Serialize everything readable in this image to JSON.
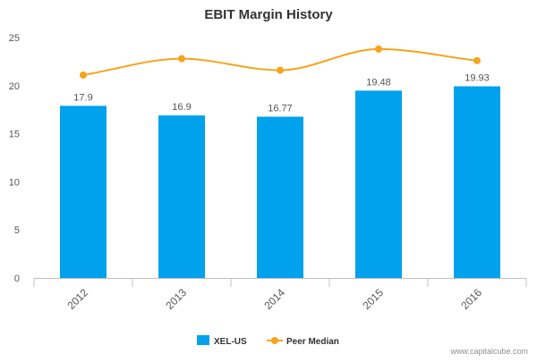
{
  "chart_data": {
    "type": "bar",
    "title": "EBIT Margin History",
    "xlabel": "",
    "ylabel": "",
    "categories": [
      "2012",
      "2013",
      "2014",
      "2015",
      "2016"
    ],
    "ylim": [
      0,
      25
    ],
    "yticks": [
      0,
      5,
      10,
      15,
      20,
      25
    ],
    "grid": false,
    "legend_position": "bottom-center",
    "series": [
      {
        "name": "XEL-US",
        "type": "bar",
        "color": "#00A2EE",
        "values": [
          17.9,
          16.9,
          16.77,
          19.48,
          19.93
        ],
        "data_labels": [
          "17.9",
          "16.9",
          "16.77",
          "19.48",
          "19.93"
        ]
      },
      {
        "name": "Peer Median",
        "type": "line",
        "smooth": true,
        "marker": "circle",
        "color": "#F7A31C",
        "values": [
          21.1,
          22.8,
          21.6,
          23.8,
          22.6
        ]
      }
    ]
  },
  "credit": "www.capitalcube.com"
}
